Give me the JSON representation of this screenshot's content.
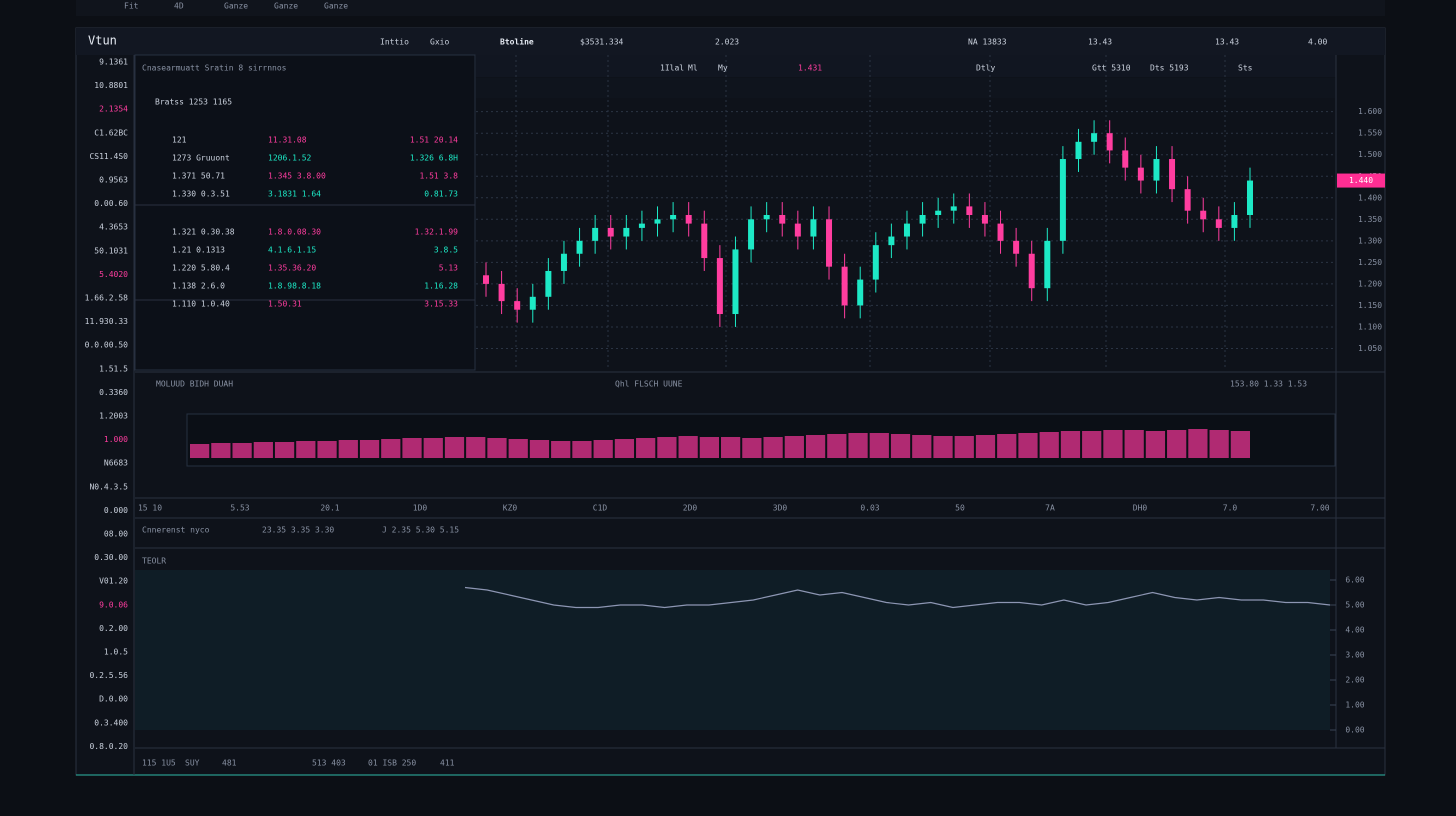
{
  "header": {
    "tabs": [
      "Fit",
      "4D",
      "Ganze",
      "Ganze",
      "Ganze"
    ]
  },
  "toolbar": {
    "logo": "Vtun",
    "items": [
      "Inttio",
      "Gxio"
    ],
    "symbol": "Btoline",
    "fields": [
      "$3531.334",
      "2.023",
      "NA 13833",
      "13.43",
      "13.43",
      "4.00"
    ]
  },
  "sidebar": [
    "9.1361",
    "10.8801",
    "2.1354",
    "C1.62BC",
    "CS11.4S0",
    "0.9563",
    "0.00.60",
    "4.3653",
    "50.1031",
    "5.4020",
    "1.66.2.58",
    "11.930.33",
    "0.0.00.50",
    "1.51.5",
    "0.3360",
    "1.2003",
    "1.000",
    "N6683",
    "N0.4.3.5",
    "0.000",
    "08.00",
    "0.30.00",
    "V01.20",
    "9.0.06",
    "0.2.00",
    "1.0.5",
    "0.2.5.56",
    "D.0.00",
    "0.3.400",
    "0.8.0.20"
  ],
  "order_book": {
    "title": "Cnasearmuatt Sratin 8 sirrnnos",
    "subtitle": "Bratss 1253 1165",
    "rows": [
      [
        "121",
        "11.31.08",
        "1.51 20.14"
      ],
      [
        "1273 Gruuont",
        "1206.1.52",
        "1.326 6.8H"
      ],
      [
        "1.371 50.71",
        "1.345 3.8.00",
        "1.51 3.8"
      ],
      [
        "1.330 0.3.51",
        "3.1831 1.64",
        "0.81.73"
      ],
      [
        "1.321 0.30.38",
        "1.8.0.08.30",
        "1.32.1.99"
      ],
      [
        "1.21 0.1313",
        "4.1.6.1.15",
        "3.8.5"
      ],
      [
        "1.220 5.80.4",
        "1.35.36.20",
        "5.13"
      ],
      [
        "1.138 2.6.0",
        "1.8.98.8.18",
        "1.16.28"
      ],
      [
        "1.110 1.0.40",
        "1.50.31",
        "3.15.33"
      ]
    ]
  },
  "chart": {
    "type": "candlestick",
    "toolbar": [
      "1Ilal",
      "Ml",
      "My",
      "1.431",
      "Dtly",
      "Gtt 5310",
      "Dts 5193",
      "Sts"
    ],
    "up_color": "#1de9c6",
    "down_color": "#ff3d9f",
    "grid": true,
    "ylim": [
      1.0,
      1.72
    ],
    "yticks": [
      {
        "value": 1.05,
        "label": "1.050"
      },
      {
        "value": 1.1,
        "label": "1.100"
      },
      {
        "value": 1.15,
        "label": "1.150"
      },
      {
        "value": 1.2,
        "label": "1.200"
      },
      {
        "value": 1.25,
        "label": "1.250"
      },
      {
        "value": 1.3,
        "label": "1.300"
      },
      {
        "value": 1.35,
        "label": "1.350"
      },
      {
        "value": 1.4,
        "label": "1.400"
      },
      {
        "value": 1.45,
        "label": "1.450"
      },
      {
        "value": 1.5,
        "label": "1.500"
      },
      {
        "value": 1.55,
        "label": "1.550"
      },
      {
        "value": 1.6,
        "label": "1.600"
      }
    ],
    "last_price": {
      "value": 1.44,
      "label": "1.440"
    },
    "candles": [
      [
        1.22,
        1.25,
        1.17,
        1.2
      ],
      [
        1.2,
        1.23,
        1.13,
        1.16
      ],
      [
        1.16,
        1.19,
        1.11,
        1.14
      ],
      [
        1.14,
        1.2,
        1.11,
        1.17
      ],
      [
        1.17,
        1.26,
        1.14,
        1.23
      ],
      [
        1.23,
        1.3,
        1.2,
        1.27
      ],
      [
        1.27,
        1.33,
        1.24,
        1.3
      ],
      [
        1.3,
        1.36,
        1.27,
        1.33
      ],
      [
        1.33,
        1.36,
        1.28,
        1.31
      ],
      [
        1.31,
        1.36,
        1.28,
        1.33
      ],
      [
        1.33,
        1.37,
        1.3,
        1.34
      ],
      [
        1.34,
        1.38,
        1.31,
        1.35
      ],
      [
        1.35,
        1.39,
        1.32,
        1.36
      ],
      [
        1.36,
        1.39,
        1.31,
        1.34
      ],
      [
        1.34,
        1.37,
        1.23,
        1.26
      ],
      [
        1.26,
        1.29,
        1.1,
        1.13
      ],
      [
        1.13,
        1.31,
        1.1,
        1.28
      ],
      [
        1.28,
        1.38,
        1.25,
        1.35
      ],
      [
        1.35,
        1.39,
        1.32,
        1.36
      ],
      [
        1.36,
        1.39,
        1.31,
        1.34
      ],
      [
        1.34,
        1.37,
        1.28,
        1.31
      ],
      [
        1.31,
        1.38,
        1.28,
        1.35
      ],
      [
        1.35,
        1.38,
        1.21,
        1.24
      ],
      [
        1.24,
        1.27,
        1.12,
        1.15
      ],
      [
        1.15,
        1.24,
        1.12,
        1.21
      ],
      [
        1.21,
        1.32,
        1.18,
        1.29
      ],
      [
        1.29,
        1.34,
        1.26,
        1.31
      ],
      [
        1.31,
        1.37,
        1.28,
        1.34
      ],
      [
        1.34,
        1.39,
        1.31,
        1.36
      ],
      [
        1.36,
        1.4,
        1.33,
        1.37
      ],
      [
        1.37,
        1.41,
        1.34,
        1.38
      ],
      [
        1.38,
        1.41,
        1.33,
        1.36
      ],
      [
        1.36,
        1.39,
        1.31,
        1.34
      ],
      [
        1.34,
        1.37,
        1.27,
        1.3
      ],
      [
        1.3,
        1.33,
        1.24,
        1.27
      ],
      [
        1.27,
        1.3,
        1.16,
        1.19
      ],
      [
        1.19,
        1.33,
        1.16,
        1.3
      ],
      [
        1.3,
        1.52,
        1.27,
        1.49
      ],
      [
        1.49,
        1.56,
        1.46,
        1.53
      ],
      [
        1.53,
        1.58,
        1.5,
        1.55
      ],
      [
        1.55,
        1.58,
        1.48,
        1.51
      ],
      [
        1.51,
        1.54,
        1.44,
        1.47
      ],
      [
        1.47,
        1.5,
        1.41,
        1.44
      ],
      [
        1.44,
        1.52,
        1.41,
        1.49
      ],
      [
        1.49,
        1.52,
        1.39,
        1.42
      ],
      [
        1.42,
        1.45,
        1.34,
        1.37
      ],
      [
        1.37,
        1.4,
        1.32,
        1.35
      ],
      [
        1.35,
        1.38,
        1.3,
        1.33
      ],
      [
        1.33,
        1.39,
        1.3,
        1.36
      ],
      [
        1.36,
        1.47,
        1.33,
        1.44
      ]
    ]
  },
  "volume": {
    "title": "MOLUUD BIDH DUAH",
    "label": "Qhl FLSCH UUNE",
    "info": "153.80 1.33 1.53",
    "color": "#b02a72",
    "ylim": [
      0,
      40
    ],
    "values": [
      14,
      15,
      15,
      16,
      16,
      17,
      17,
      18,
      18,
      19,
      20,
      20,
      21,
      21,
      20,
      19,
      18,
      17,
      17,
      18,
      19,
      20,
      21,
      22,
      21,
      21,
      20,
      21,
      22,
      23,
      24,
      25,
      25,
      24,
      23,
      22,
      22,
      23,
      24,
      25,
      26,
      27,
      27,
      28,
      28,
      27,
      28,
      29,
      28,
      27
    ]
  },
  "time_axis": [
    "15 10",
    "5.53",
    "20.1",
    "1D0",
    "KZ0",
    "C1D",
    "2D0",
    "3D0",
    "0.03",
    "50",
    "7A",
    "DH0",
    "7.0",
    "7.00"
  ],
  "indicator": {
    "title": "TEOLR",
    "info": [
      "Cnnerenst nyco",
      "23.35 3.35 3.30",
      "J 2.35 5.30 5.15"
    ],
    "color": "#8d96b3",
    "ylim": [
      0,
      6.4
    ],
    "yticks": [
      {
        "value": 0,
        "label": "0.00"
      },
      {
        "value": 1,
        "label": "1.00"
      },
      {
        "value": 2,
        "label": "2.00"
      },
      {
        "value": 3,
        "label": "3.00"
      },
      {
        "value": 4,
        "label": "4.00"
      },
      {
        "value": 5,
        "label": "5.00"
      },
      {
        "value": 6,
        "label": "6.00"
      }
    ],
    "values": [
      5.7,
      5.6,
      5.4,
      5.2,
      5.0,
      4.9,
      4.9,
      5.0,
      5.0,
      4.9,
      5.0,
      5.0,
      5.1,
      5.2,
      5.4,
      5.6,
      5.4,
      5.5,
      5.3,
      5.1,
      5.0,
      5.1,
      4.9,
      5.0,
      5.1,
      5.1,
      5.0,
      5.2,
      5.0,
      5.1,
      5.3,
      5.5,
      5.3,
      5.2,
      5.3,
      5.2,
      5.2,
      5.1,
      5.1,
      5.0
    ]
  },
  "footer": [
    "115 1U5",
    "SUY",
    "481",
    "513 403",
    "01 ISB 250",
    "411"
  ]
}
